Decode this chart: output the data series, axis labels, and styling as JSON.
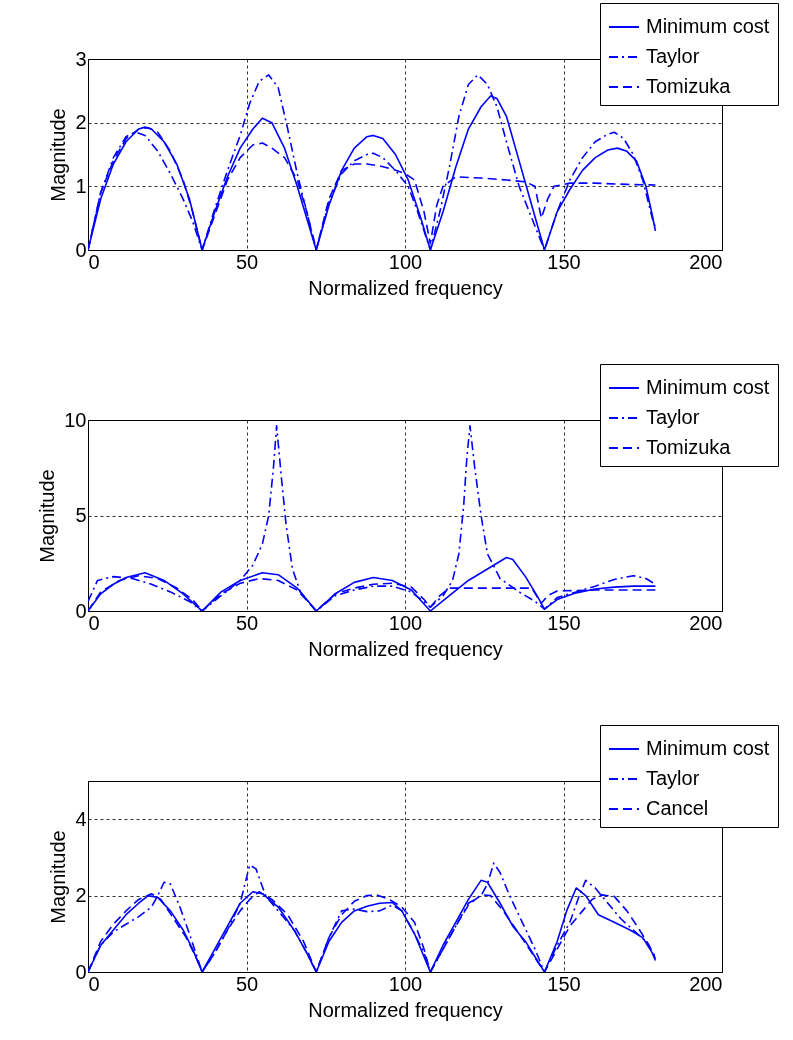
{
  "chart_data": [
    {
      "type": "line",
      "xlabel": "Normalized frequency",
      "ylabel": "Magnitude",
      "xlim": [
        0,
        200
      ],
      "xticks": [
        0,
        50,
        100,
        150,
        200
      ],
      "ylim": [
        0,
        3
      ],
      "yticks": [
        0,
        1,
        2,
        3
      ],
      "grid": true,
      "legend": "top right",
      "series": [
        {
          "name": "Minimum cost",
          "color": "#0000ff",
          "line_style": "solid",
          "x": [
            0,
            4,
            8,
            12,
            16,
            18,
            20,
            24,
            28,
            32,
            36,
            40,
            44,
            48,
            52,
            55,
            58,
            62,
            66,
            69,
            72,
            76,
            80,
            84,
            88,
            90,
            93,
            97,
            101,
            105,
            108,
            112,
            116,
            120,
            124,
            127,
            129,
            132,
            136,
            140,
            144,
            148,
            152,
            156,
            160,
            164,
            167,
            170,
            173,
            176,
            178,
            179
          ],
          "values": [
            0,
            0.8,
            1.35,
            1.7,
            1.9,
            1.93,
            1.9,
            1.7,
            1.35,
            0.8,
            0,
            0.6,
            1.15,
            1.6,
            1.9,
            2.07,
            2.0,
            1.6,
            1.0,
            0.5,
            0,
            0.7,
            1.25,
            1.6,
            1.78,
            1.8,
            1.75,
            1.5,
            1.1,
            0.5,
            0,
            0.6,
            1.3,
            1.9,
            2.25,
            2.42,
            2.38,
            2.1,
            1.4,
            0.7,
            0,
            0.6,
            0.95,
            1.25,
            1.45,
            1.57,
            1.6,
            1.55,
            1.4,
            1.0,
            0.55,
            0.3
          ]
        },
        {
          "name": "Taylor",
          "color": "#0000ff",
          "line_style": "dashdot",
          "x": [
            0,
            4,
            8,
            12,
            15,
            18,
            22,
            26,
            30,
            33,
            36,
            40,
            44,
            48,
            51,
            54,
            57,
            60,
            63,
            66,
            69,
            72,
            76,
            80,
            84,
            88,
            90,
            93,
            97,
            101,
            104,
            108,
            111,
            114,
            117,
            120,
            123,
            126,
            129,
            132,
            136,
            140,
            144,
            148,
            152,
            156,
            160,
            164,
            166,
            169,
            172,
            175,
            178,
            179
          ],
          "values": [
            0,
            0.9,
            1.45,
            1.78,
            1.85,
            1.8,
            1.55,
            1.2,
            0.8,
            0.45,
            0,
            0.65,
            1.25,
            1.8,
            2.3,
            2.65,
            2.75,
            2.55,
            1.9,
            1.2,
            0.6,
            0,
            0.75,
            1.2,
            1.4,
            1.5,
            1.52,
            1.45,
            1.25,
            1.0,
            0.6,
            0,
            0.6,
            1.3,
            2.1,
            2.6,
            2.75,
            2.6,
            2.25,
            1.7,
            1.0,
            0.5,
            0,
            0.6,
            1.1,
            1.45,
            1.7,
            1.82,
            1.85,
            1.75,
            1.5,
            1.1,
            0.5,
            0.35
          ]
        },
        {
          "name": "Tomizuka",
          "color": "#0000ff",
          "line_style": "dashed",
          "x": [
            0,
            4,
            8,
            12,
            16,
            19,
            22,
            26,
            30,
            33,
            36,
            40,
            44,
            48,
            52,
            55,
            58,
            62,
            66,
            69,
            72,
            76,
            80,
            84,
            88,
            92,
            96,
            100,
            103,
            106,
            108,
            110,
            112,
            116,
            124,
            132,
            138,
            141,
            143,
            145,
            147,
            152,
            160,
            170,
            179
          ],
          "values": [
            0,
            0.9,
            1.4,
            1.75,
            1.9,
            1.92,
            1.85,
            1.55,
            1.1,
            0.6,
            0,
            0.55,
            1.1,
            1.45,
            1.65,
            1.68,
            1.6,
            1.45,
            1.1,
            0.6,
            0,
            0.8,
            1.25,
            1.35,
            1.35,
            1.32,
            1.27,
            1.2,
            1.1,
            0.6,
            0.1,
            0.7,
            1.0,
            1.15,
            1.13,
            1.1,
            1.07,
            1.0,
            0.5,
            0.8,
            1.0,
            1.05,
            1.05,
            1.03,
            1.02
          ]
        }
      ]
    },
    {
      "type": "line",
      "xlabel": "Normalized frequency",
      "ylabel": "Magnitude",
      "xlim": [
        0,
        200
      ],
      "xticks": [
        0,
        50,
        100,
        150,
        200
      ],
      "ylim": [
        0,
        10
      ],
      "yticks": [
        0,
        5,
        10
      ],
      "grid": true,
      "legend": "top right",
      "series": [
        {
          "name": "Minimum cost",
          "color": "#0000ff",
          "line_style": "solid",
          "x": [
            0,
            4,
            8,
            12,
            18,
            24,
            30,
            36,
            42,
            48,
            55,
            60,
            66,
            72,
            78,
            84,
            90,
            96,
            102,
            108,
            114,
            120,
            126,
            132,
            134,
            138,
            142,
            144,
            148,
            154,
            160,
            166,
            172,
            179
          ],
          "values": [
            0,
            0.9,
            1.4,
            1.75,
            2.0,
            1.6,
            0.9,
            0,
            1.0,
            1.6,
            2.0,
            1.9,
            1.2,
            0,
            0.9,
            1.5,
            1.75,
            1.6,
            1.1,
            0,
            0.8,
            1.6,
            2.2,
            2.8,
            2.7,
            1.8,
            0.7,
            0.1,
            0.6,
            0.95,
            1.15,
            1.25,
            1.3,
            1.3
          ]
        },
        {
          "name": "Taylor",
          "color": "#0000ff",
          "line_style": "dashdot",
          "x": [
            0,
            3,
            8,
            14,
            20,
            26,
            32,
            36,
            42,
            48,
            52,
            55,
            57,
            58.5,
            59.5,
            61,
            62.5,
            64.5,
            67,
            72,
            78,
            84,
            90,
            96,
            102,
            108,
            112,
            115,
            117,
            118.5,
            119.5,
            120.5,
            122,
            124,
            126,
            130,
            136,
            141,
            144,
            148,
            154,
            160,
            166,
            172,
            176,
            179
          ],
          "values": [
            0.5,
            1.6,
            1.8,
            1.7,
            1.4,
            1.0,
            0.5,
            0,
            0.8,
            1.6,
            2.4,
            3.5,
            5.0,
            7.5,
            9.7,
            7.0,
            4.5,
            2.2,
            1.0,
            0,
            0.8,
            1.1,
            1.3,
            1.3,
            1.0,
            0.2,
            0.8,
            1.6,
            3.0,
            5.5,
            8.0,
            9.7,
            7.5,
            5.0,
            3.0,
            1.7,
            1.0,
            0.5,
            0.1,
            0.7,
            1.0,
            1.3,
            1.65,
            1.85,
            1.7,
            1.4
          ]
        },
        {
          "name": "Tomizuka",
          "color": "#0000ff",
          "line_style": "dashed",
          "x": [
            0,
            4,
            10,
            16,
            22,
            28,
            33,
            36,
            42,
            48,
            54,
            60,
            66,
            72,
            78,
            84,
            90,
            96,
            102,
            106,
            108,
            111,
            114,
            120,
            130,
            140,
            143,
            145,
            148,
            160,
            170,
            179
          ],
          "values": [
            0,
            1.0,
            1.6,
            1.85,
            1.7,
            1.2,
            0.6,
            0,
            0.9,
            1.45,
            1.7,
            1.6,
            1.1,
            0,
            0.9,
            1.2,
            1.4,
            1.45,
            1.25,
            0.6,
            0.2,
            0.8,
            1.2,
            1.2,
            1.2,
            1.2,
            0.4,
            0.8,
            1.05,
            1.1,
            1.1,
            1.1
          ]
        }
      ]
    },
    {
      "type": "line",
      "xlabel": "Normalized frequency",
      "ylabel": "Magnitude",
      "xlim": [
        0,
        200
      ],
      "xticks": [
        0,
        50,
        100,
        150,
        200
      ],
      "ylim": [
        0,
        5
      ],
      "yticks": [
        0,
        2,
        4
      ],
      "grid": true,
      "legend": "top right",
      "series": [
        {
          "name": "Minimum cost",
          "color": "#0000ff",
          "line_style": "solid",
          "x": [
            0,
            4,
            8,
            12,
            16,
            19,
            22,
            26,
            30,
            33,
            36,
            40,
            44,
            48,
            52,
            55,
            60,
            65,
            69,
            72,
            76,
            80,
            84,
            88,
            92,
            96,
            99,
            103,
            106,
            108,
            112,
            116,
            120,
            124,
            126,
            130,
            134,
            138,
            141,
            144,
            148,
            151,
            154,
            157,
            161,
            166,
            171,
            175,
            178,
            179
          ],
          "values": [
            0,
            0.7,
            1.1,
            1.5,
            1.8,
            2.0,
            1.95,
            1.6,
            1.1,
            0.6,
            0,
            0.6,
            1.2,
            1.8,
            2.1,
            2.05,
            1.7,
            1.1,
            0.5,
            0,
            0.8,
            1.3,
            1.6,
            1.72,
            1.8,
            1.82,
            1.6,
            1.0,
            0.4,
            0,
            0.7,
            1.3,
            1.9,
            2.4,
            2.35,
            1.8,
            1.2,
            0.8,
            0.4,
            0,
            0.8,
            1.6,
            2.2,
            2.0,
            1.5,
            1.3,
            1.1,
            0.9,
            0.5,
            0.3
          ]
        },
        {
          "name": "Taylor",
          "color": "#0000ff",
          "line_style": "dashdot",
          "x": [
            0,
            4,
            8,
            12,
            16,
            20,
            22,
            24,
            26,
            29,
            32,
            36,
            40,
            44,
            48,
            51,
            53,
            56,
            60,
            65,
            69,
            72,
            76,
            80,
            84,
            88,
            92,
            96,
            99,
            103,
            106,
            108,
            112,
            116,
            120,
            124,
            126,
            128,
            130,
            133,
            137,
            141,
            144,
            148,
            152,
            155,
            157,
            160,
            164,
            168,
            172,
            176,
            179
          ],
          "values": [
            0,
            0.7,
            1.05,
            1.25,
            1.45,
            1.7,
            2.0,
            2.35,
            2.3,
            1.7,
            1.0,
            0,
            0.5,
            1.1,
            1.8,
            2.8,
            2.7,
            2.0,
            1.6,
            1.1,
            0.5,
            0,
            0.9,
            1.6,
            1.65,
            1.58,
            1.6,
            1.75,
            1.6,
            1.0,
            0.5,
            0,
            0.6,
            1.2,
            1.8,
            2.0,
            2.3,
            2.85,
            2.6,
            2.0,
            1.3,
            0.6,
            0,
            0.7,
            1.3,
            2.0,
            2.4,
            2.2,
            1.8,
            1.4,
            1.1,
            0.8,
            0.4
          ]
        },
        {
          "name": "Cancel",
          "color": "#0000ff",
          "line_style": "dashed",
          "x": [
            0,
            4,
            8,
            12,
            16,
            20,
            23,
            27,
            31,
            34,
            36,
            40,
            44,
            48,
            51,
            54,
            58,
            63,
            68,
            72,
            76,
            80,
            84,
            88,
            91,
            95,
            99,
            103,
            106,
            108,
            112,
            116,
            120,
            124,
            127,
            131,
            136,
            140,
            144,
            148,
            152,
            156,
            159,
            162,
            166,
            170,
            174,
            177,
            179
          ],
          "values": [
            0,
            0.8,
            1.25,
            1.6,
            1.9,
            2.05,
            1.9,
            1.4,
            0.9,
            0.4,
            0,
            0.5,
            1.1,
            1.6,
            1.9,
            2.1,
            1.9,
            1.5,
            0.8,
            0,
            0.9,
            1.5,
            1.85,
            2.0,
            2.02,
            1.9,
            1.7,
            1.3,
            0.6,
            0,
            0.6,
            1.2,
            1.75,
            2.02,
            2.0,
            1.6,
            1.0,
            0.5,
            0,
            0.6,
            1.2,
            1.6,
            1.9,
            2.02,
            1.98,
            1.6,
            1.1,
            0.7,
            0.35
          ]
        }
      ]
    }
  ]
}
